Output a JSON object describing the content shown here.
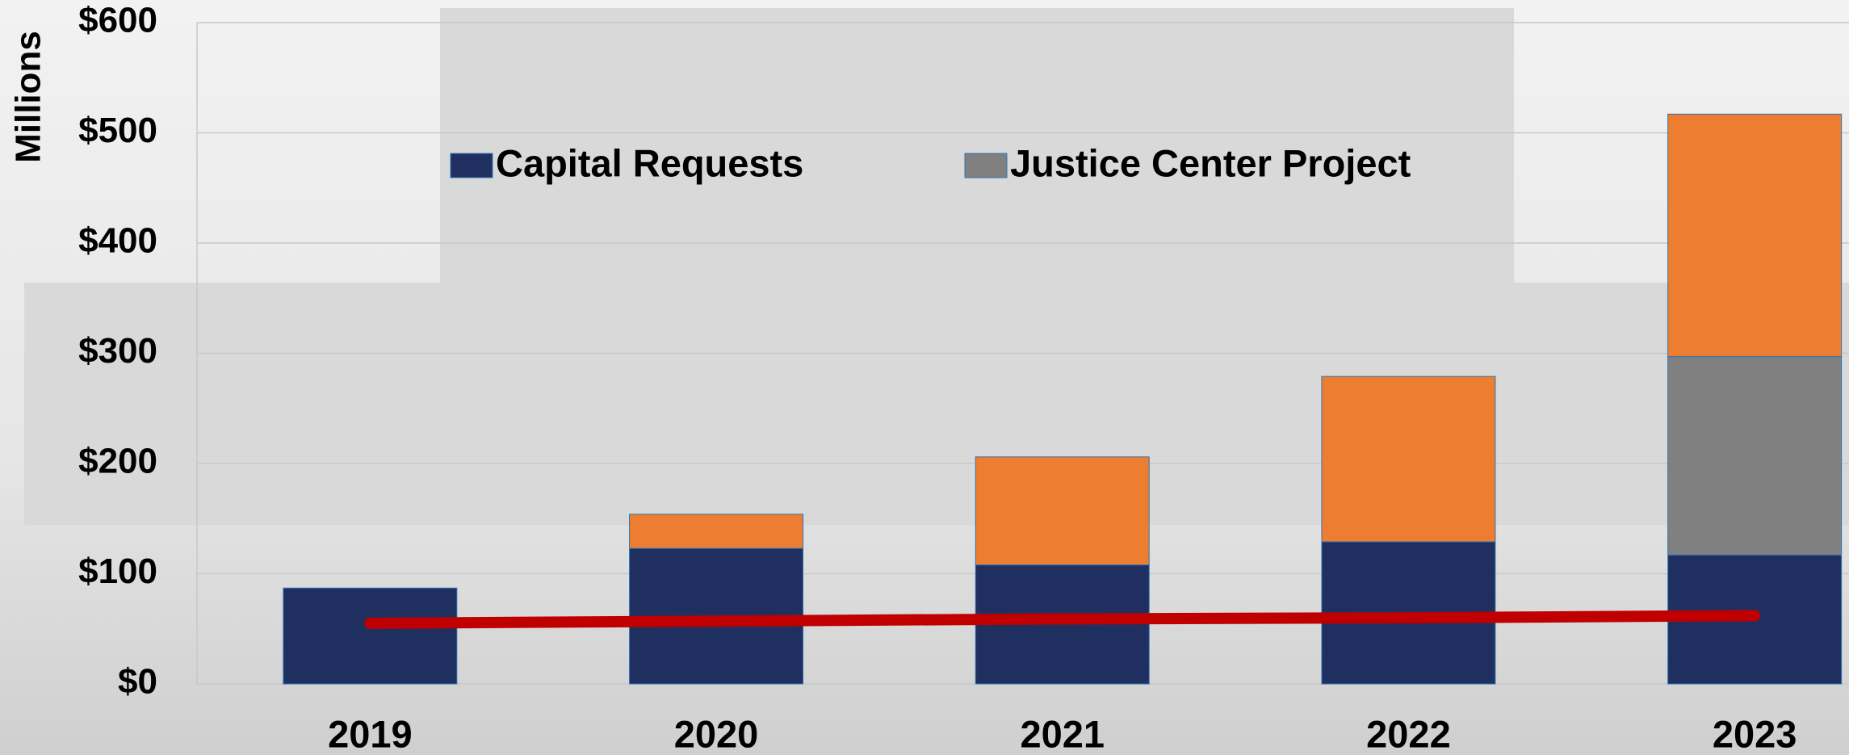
{
  "chart_data": {
    "type": "bar",
    "stacked": true,
    "y_label": "Millions",
    "categories": [
      "2019",
      "2020",
      "2021",
      "2022",
      "2023"
    ],
    "series": [
      {
        "name": "Capital Requests",
        "color": "#1f3060",
        "values": [
          87,
          123,
          108,
          129,
          117
        ]
      },
      {
        "name": "Justice Center Project",
        "color": "#808080",
        "values": [
          null,
          null,
          null,
          null,
          180
        ]
      },
      {
        "color": "#ed7d31",
        "values": [
          null,
          31,
          98,
          150,
          220
        ]
      },
      {
        "type": "line",
        "color": "#c00000",
        "values": [
          55,
          57,
          59,
          60,
          62
        ]
      }
    ],
    "ylim": [
      0,
      600
    ],
    "yticks": [
      {
        "value": 0,
        "label": "$0"
      },
      {
        "value": 100,
        "label": "$100"
      },
      {
        "value": 200,
        "label": "$200"
      },
      {
        "value": 300,
        "label": "$300"
      },
      {
        "value": 400,
        "label": "$400"
      },
      {
        "value": 500,
        "label": "$500"
      },
      {
        "value": 600,
        "label": "$600"
      }
    ],
    "grid": true
  }
}
